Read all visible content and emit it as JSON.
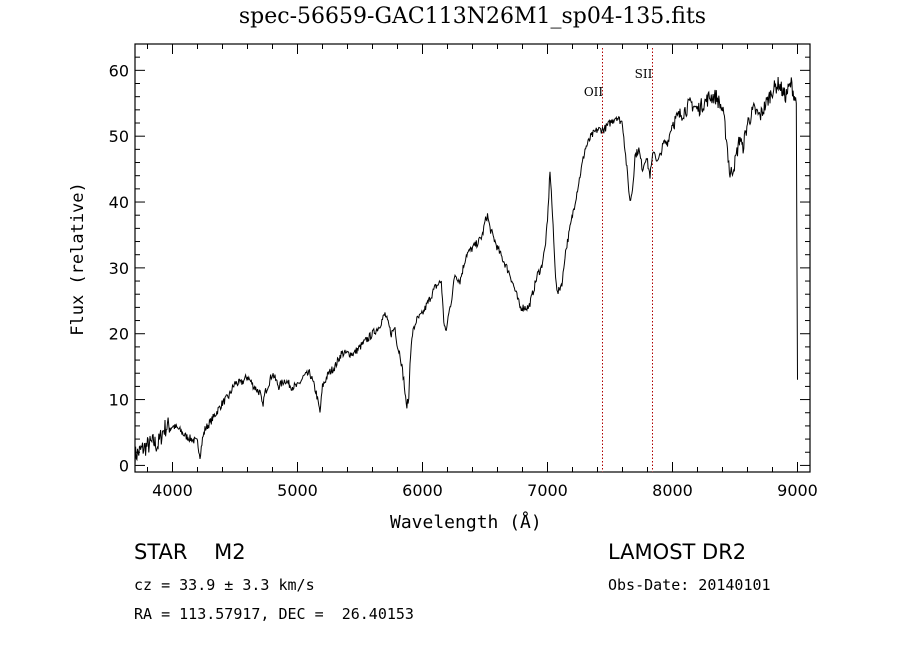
{
  "chart_data": {
    "type": "line",
    "title": "spec-56659-GAC113N26M1_sp04-135.fits",
    "xlabel": "Wavelength (Å)",
    "ylabel": "Flux (relative)",
    "xlim": [
      3700,
      9100
    ],
    "ylim": [
      -1,
      64
    ],
    "xticks": [
      4000,
      5000,
      6000,
      7000,
      8000,
      9000
    ],
    "yticks": [
      0,
      10,
      20,
      30,
      40,
      50,
      60
    ],
    "lines": [
      {
        "label": "OII",
        "x": 7440
      },
      {
        "label": "SII",
        "x": 7840
      }
    ],
    "series": [
      {
        "name": "flux",
        "x": [
          3700,
          3730,
          3760,
          3800,
          3850,
          3880,
          3900,
          3930,
          3960,
          4000,
          4050,
          4100,
          4150,
          4200,
          4220,
          4240,
          4260,
          4300,
          4350,
          4400,
          4450,
          4500,
          4550,
          4600,
          4650,
          4700,
          4720,
          4740,
          4760,
          4800,
          4850,
          4900,
          4950,
          5000,
          5050,
          5100,
          5150,
          5180,
          5200,
          5250,
          5300,
          5350,
          5400,
          5450,
          5500,
          5550,
          5600,
          5650,
          5700,
          5750,
          5780,
          5800,
          5820,
          5850,
          5870,
          5890,
          5900,
          5920,
          5950,
          6000,
          6050,
          6100,
          6150,
          6170,
          6190,
          6200,
          6230,
          6260,
          6300,
          6350,
          6400,
          6450,
          6480,
          6500,
          6520,
          6540,
          6560,
          6600,
          6650,
          6700,
          6750,
          6780,
          6800,
          6850,
          6880,
          6920,
          6950,
          6980,
          7000,
          7020,
          7040,
          7060,
          7080,
          7100,
          7120,
          7140,
          7160,
          7180,
          7200,
          7220,
          7240,
          7260,
          7280,
          7300,
          7350,
          7400,
          7450,
          7500,
          7550,
          7600,
          7620,
          7640,
          7660,
          7680,
          7700,
          7730,
          7760,
          7790,
          7820,
          7850,
          7880,
          7900,
          7930,
          7960,
          8000,
          8050,
          8100,
          8150,
          8200,
          8250,
          8300,
          8350,
          8400,
          8430,
          8460,
          8500,
          8520,
          8540,
          8560,
          8600,
          8650,
          8700,
          8750,
          8800,
          8850,
          8900,
          8950,
          8990,
          9000
        ],
        "values": [
          1.5,
          2,
          2.5,
          3,
          3.5,
          3,
          4,
          5.5,
          6,
          6,
          5.5,
          4.5,
          4,
          3.5,
          1.5,
          4,
          5.5,
          6.5,
          8,
          9.5,
          10.5,
          12.5,
          12.5,
          13.5,
          12,
          11,
          9,
          11,
          12,
          14,
          12,
          13,
          12,
          12,
          13.5,
          14,
          11,
          8,
          12,
          14,
          15,
          17,
          17,
          17,
          18,
          19,
          20,
          21,
          23,
          20,
          21,
          18,
          17,
          13,
          9,
          10,
          16,
          20,
          22,
          23,
          25,
          27,
          28,
          22,
          20,
          22,
          25,
          29,
          28,
          32,
          33,
          34,
          35,
          37,
          38,
          36,
          35,
          33,
          31,
          29,
          26,
          24,
          24,
          24,
          26,
          29,
          30,
          33,
          37,
          45,
          38,
          30,
          26,
          27,
          28,
          32,
          34,
          36,
          38,
          40,
          42,
          44,
          46,
          48,
          50,
          51,
          51,
          52,
          53,
          52,
          48,
          44,
          40,
          42,
          47,
          48,
          45,
          47,
          44,
          48,
          46,
          47,
          49,
          49,
          52,
          53,
          54,
          55,
          54,
          55,
          56,
          56,
          54,
          50,
          44,
          46,
          48,
          50,
          48,
          52,
          54,
          53,
          55,
          57,
          58,
          56,
          58,
          55,
          13
        ]
      }
    ],
    "notes": {
      "object_line": "STAR    M2",
      "survey": "LAMOST DR2",
      "cz": "cz = 33.9 ± 3.3 km/s",
      "obs_date": "Obs-Date: 20140101",
      "coords": "RA = 113.57917, DEC =  26.40153"
    }
  }
}
